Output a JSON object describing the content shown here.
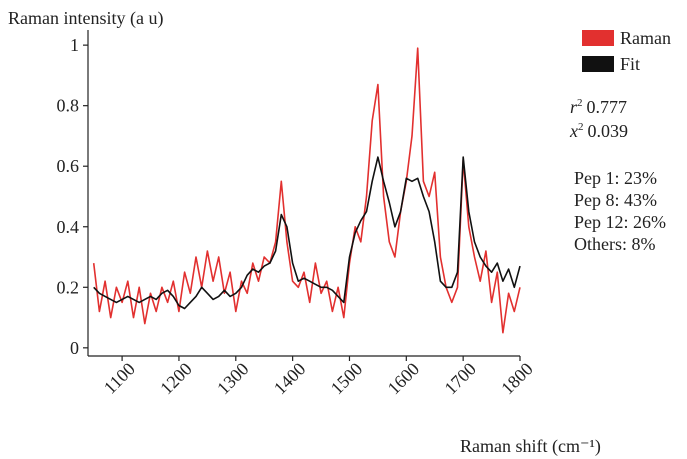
{
  "chart_data": {
    "type": "line",
    "y_label": "Raman intensity (a u)",
    "x_label": "Raman shift (cm⁻¹)",
    "x": [
      1050,
      1060,
      1070,
      1080,
      1090,
      1100,
      1110,
      1120,
      1130,
      1140,
      1150,
      1160,
      1170,
      1180,
      1190,
      1200,
      1210,
      1220,
      1230,
      1240,
      1250,
      1260,
      1270,
      1280,
      1290,
      1300,
      1310,
      1320,
      1330,
      1340,
      1350,
      1360,
      1370,
      1380,
      1390,
      1400,
      1410,
      1420,
      1430,
      1440,
      1450,
      1460,
      1470,
      1480,
      1490,
      1500,
      1510,
      1520,
      1530,
      1540,
      1550,
      1560,
      1570,
      1580,
      1590,
      1600,
      1610,
      1620,
      1630,
      1640,
      1650,
      1660,
      1670,
      1680,
      1690,
      1700,
      1710,
      1720,
      1730,
      1740,
      1750,
      1760,
      1770,
      1780,
      1790,
      1800
    ],
    "series": [
      {
        "name": "Raman",
        "color": "#e2302f",
        "values": [
          0.28,
          0.12,
          0.22,
          0.1,
          0.2,
          0.15,
          0.22,
          0.1,
          0.2,
          0.08,
          0.18,
          0.12,
          0.2,
          0.15,
          0.22,
          0.12,
          0.25,
          0.18,
          0.3,
          0.2,
          0.32,
          0.22,
          0.3,
          0.18,
          0.25,
          0.12,
          0.22,
          0.18,
          0.28,
          0.22,
          0.3,
          0.28,
          0.35,
          0.55,
          0.35,
          0.22,
          0.2,
          0.25,
          0.15,
          0.28,
          0.18,
          0.22,
          0.12,
          0.2,
          0.1,
          0.28,
          0.4,
          0.35,
          0.5,
          0.75,
          0.87,
          0.5,
          0.35,
          0.3,
          0.45,
          0.55,
          0.7,
          0.99,
          0.55,
          0.5,
          0.58,
          0.3,
          0.2,
          0.15,
          0.2,
          0.62,
          0.4,
          0.3,
          0.22,
          0.32,
          0.15,
          0.25,
          0.05,
          0.18,
          0.12,
          0.2
        ]
      },
      {
        "name": "Fit",
        "color": "#111111",
        "values": [
          0.2,
          0.18,
          0.17,
          0.16,
          0.15,
          0.16,
          0.17,
          0.16,
          0.15,
          0.16,
          0.17,
          0.16,
          0.18,
          0.19,
          0.17,
          0.14,
          0.13,
          0.15,
          0.17,
          0.2,
          0.18,
          0.16,
          0.17,
          0.19,
          0.17,
          0.18,
          0.2,
          0.24,
          0.26,
          0.25,
          0.27,
          0.28,
          0.32,
          0.44,
          0.4,
          0.28,
          0.22,
          0.23,
          0.22,
          0.21,
          0.2,
          0.2,
          0.19,
          0.17,
          0.15,
          0.3,
          0.38,
          0.42,
          0.45,
          0.55,
          0.63,
          0.55,
          0.48,
          0.4,
          0.45,
          0.56,
          0.55,
          0.56,
          0.5,
          0.45,
          0.35,
          0.22,
          0.2,
          0.2,
          0.25,
          0.63,
          0.45,
          0.35,
          0.3,
          0.27,
          0.25,
          0.28,
          0.22,
          0.26,
          0.2,
          0.27
        ]
      }
    ],
    "xlim": [
      1040,
      1800
    ],
    "ylim": [
      -0.027,
      1.05
    ],
    "xticks": [
      1100,
      1200,
      1300,
      1400,
      1500,
      1600,
      1700,
      1800
    ],
    "yticks": [
      0,
      0.2,
      0.4,
      0.6,
      0.8,
      1
    ],
    "stats": [
      {
        "symbol": "r",
        "power": "2",
        "value": "0.777"
      },
      {
        "symbol": "x",
        "power": "2",
        "value": "0.039"
      }
    ],
    "composition": [
      "Pep 1: 23%",
      "Pep 8: 43%",
      "Pep 12: 26%",
      "Others: 8%"
    ]
  }
}
